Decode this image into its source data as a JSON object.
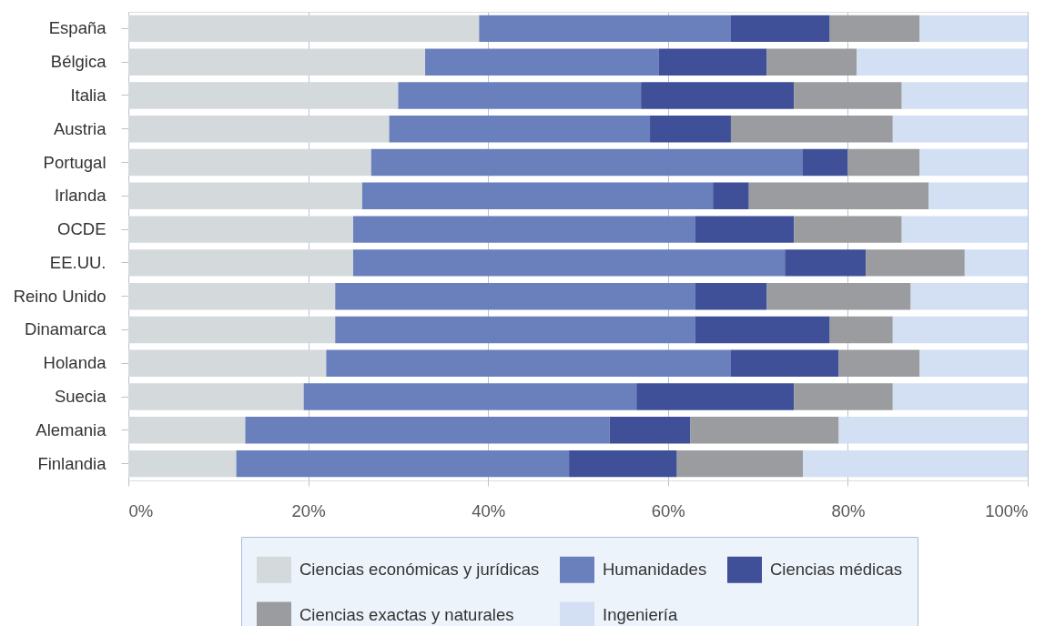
{
  "chart_data": {
    "type": "bar",
    "orientation": "horizontal",
    "stacked": true,
    "categories": [
      "España",
      "Bélgica",
      "Italia",
      "Austria",
      "Portugal",
      "Irlanda",
      "OCDE",
      "EE.UU.",
      "Reino Unido",
      "Dinamarca",
      "Holanda",
      "Suecia",
      "Alemania",
      "Finlandia"
    ],
    "series": [
      {
        "name": "Ciencias económicas y jurídicas",
        "color": "#d4d9dc",
        "values": [
          39,
          33,
          30,
          29,
          27,
          26,
          25,
          25,
          23,
          23,
          22,
          19.5,
          13,
          12
        ]
      },
      {
        "name": "Humanidades",
        "color": "#6a80bd",
        "values": [
          28,
          26,
          27,
          29,
          48,
          39,
          38,
          48,
          40,
          40,
          45,
          37,
          40.5,
          37
        ]
      },
      {
        "name": "Ciencias médicas",
        "color": "#3f4f98",
        "values": [
          11,
          12,
          17,
          9,
          5,
          4,
          11,
          9,
          8,
          15,
          12,
          17.5,
          9,
          12
        ]
      },
      {
        "name": "Ciencias exactas y naturales",
        "color": "#9a9c9f",
        "values": [
          10,
          10,
          12,
          18,
          8,
          20,
          12,
          11,
          16,
          7,
          9,
          11,
          16.5,
          14
        ]
      },
      {
        "name": "Ingeniería",
        "color": "#d3e0f3",
        "values": [
          12,
          19,
          14,
          15,
          12,
          11,
          14,
          7,
          13,
          15,
          12,
          15,
          21,
          25
        ]
      }
    ],
    "xlim": [
      0,
      100
    ],
    "xticks": [
      {
        "value": 0,
        "label": "0%"
      },
      {
        "value": 20,
        "label": "20%"
      },
      {
        "value": 40,
        "label": "40%"
      },
      {
        "value": 60,
        "label": "60%"
      },
      {
        "value": 80,
        "label": "80%"
      },
      {
        "value": 100,
        "label": "100%"
      }
    ],
    "grid": "x",
    "legend": "bottom"
  }
}
